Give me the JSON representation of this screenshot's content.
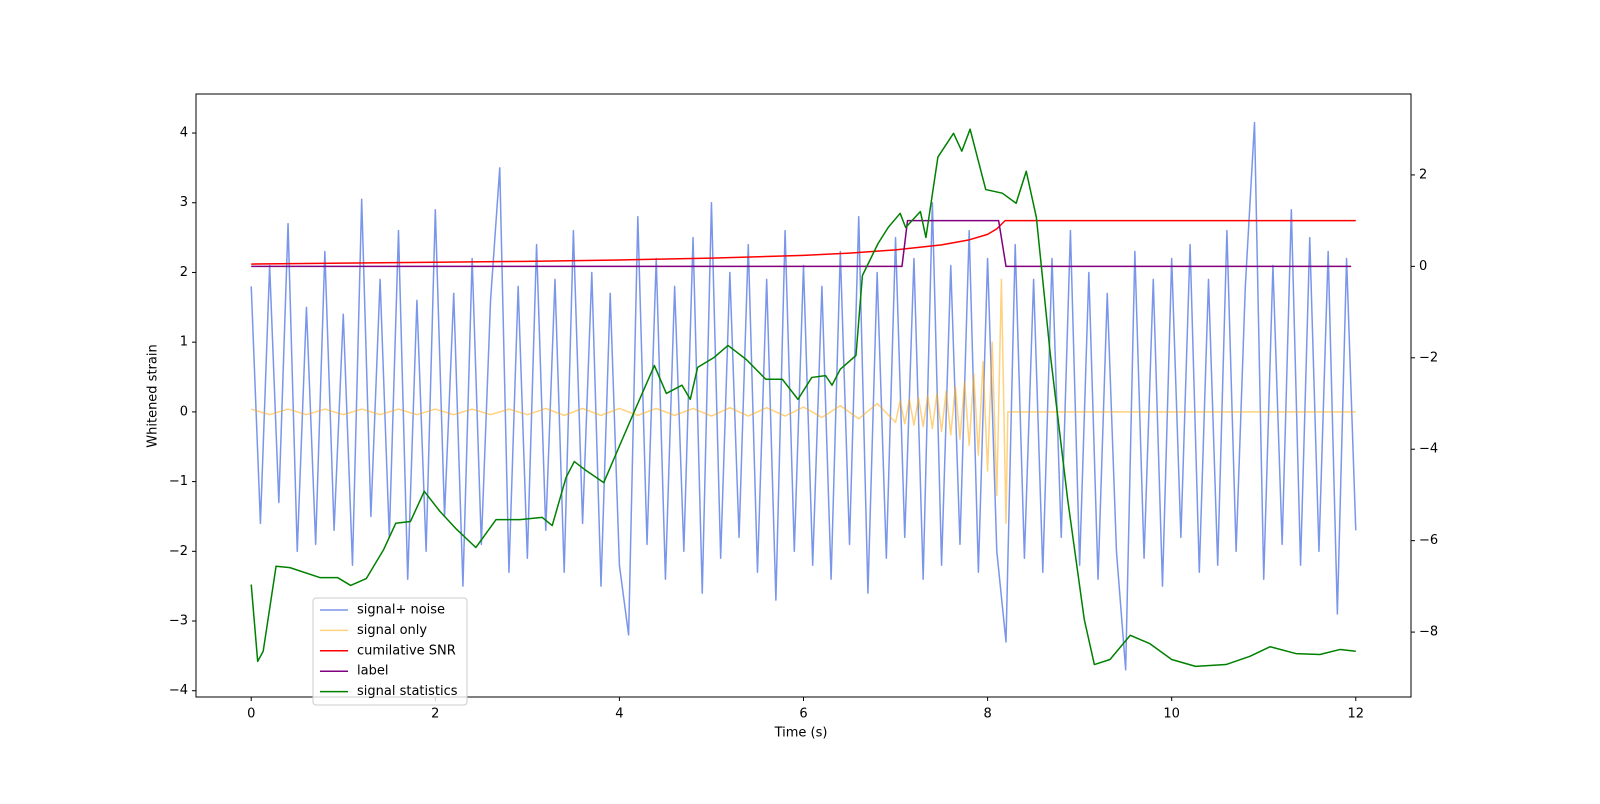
{
  "chart_data": {
    "type": "line",
    "xlabel": "Time (s)",
    "ylabel": "Whitened strain",
    "xlim": [
      -0.6,
      12.6
    ],
    "ylim": [
      -4.09,
      4.56
    ],
    "y2lim": [
      -9.42,
      3.77
    ],
    "xticks": [
      0,
      2,
      4,
      6,
      8,
      10,
      12
    ],
    "yticks": [
      {
        "value": -4,
        "label": "−4"
      },
      {
        "value": -3,
        "label": "−3"
      },
      {
        "value": -2,
        "label": "−2"
      },
      {
        "value": -1,
        "label": "−1"
      },
      0,
      1,
      2,
      3,
      4
    ],
    "y2ticks": [
      {
        "value": -8,
        "label": "−8"
      },
      {
        "value": -6,
        "label": "−6"
      },
      {
        "value": -4,
        "label": "−4"
      },
      {
        "value": -2,
        "label": "−2"
      },
      0,
      2
    ],
    "legend": "lower left",
    "grid": false,
    "series": [
      {
        "name": "signal+ noise",
        "color": "#4169e1",
        "opacity": 0.7,
        "x": [
          0,
          0.1,
          0.2,
          0.3,
          0.4,
          0.5,
          0.6,
          0.7,
          0.8,
          0.9,
          1,
          1.1,
          1.2,
          1.3,
          1.4,
          1.5,
          1.6,
          1.7,
          1.8,
          1.9,
          2,
          2.1,
          2.2,
          2.3,
          2.4,
          2.5,
          2.6,
          2.7,
          2.8,
          2.9,
          3,
          3.1,
          3.2,
          3.3,
          3.4,
          3.5,
          3.6,
          3.7,
          3.8,
          3.9,
          4,
          4.1,
          4.2,
          4.3,
          4.4,
          4.5,
          4.6,
          4.7,
          4.8,
          4.9,
          5,
          5.1,
          5.2,
          5.3,
          5.4,
          5.5,
          5.6,
          5.7,
          5.8,
          5.9,
          6,
          6.1,
          6.2,
          6.3,
          6.4,
          6.5,
          6.6,
          6.7,
          6.8,
          6.9,
          7,
          7.1,
          7.2,
          7.3,
          7.4,
          7.5,
          7.6,
          7.7,
          7.8,
          7.9,
          8,
          8.1,
          8.2,
          8.3,
          8.4,
          8.5,
          8.6,
          8.7,
          8.8,
          8.9,
          9,
          9.1,
          9.2,
          9.3,
          9.4,
          9.5,
          9.6,
          9.7,
          9.8,
          9.9,
          10,
          10.1,
          10.2,
          10.3,
          10.4,
          10.5,
          10.6,
          10.7,
          10.8,
          10.9,
          11,
          11.1,
          11.2,
          11.3,
          11.4,
          11.5,
          11.6,
          11.7,
          11.8,
          11.9,
          12
        ],
        "values": [
          1.8,
          -1.6,
          2.1,
          -1.3,
          2.7,
          -2.0,
          1.5,
          -1.9,
          2.3,
          -1.7,
          1.4,
          -2.2,
          3.05,
          -1.5,
          1.9,
          -1.8,
          2.6,
          -2.4,
          1.6,
          -2.0,
          2.9,
          -1.5,
          1.7,
          -2.5,
          2.2,
          -1.9,
          1.6,
          3.5,
          -2.3,
          1.8,
          -2.1,
          2.4,
          -1.7,
          1.9,
          -2.3,
          2.6,
          -1.6,
          2.0,
          -2.5,
          1.7,
          -2.2,
          -3.2,
          2.8,
          -1.9,
          2.2,
          -2.4,
          1.8,
          -2.0,
          2.5,
          -2.6,
          3.0,
          -2.1,
          2.0,
          -1.8,
          2.4,
          -2.3,
          1.9,
          -2.7,
          2.6,
          -2.0,
          2.1,
          -2.2,
          1.8,
          -2.4,
          2.3,
          -1.9,
          2.8,
          -2.6,
          2.0,
          -2.1,
          2.5,
          -1.8,
          2.2,
          -2.4,
          3.0,
          -2.2,
          2.1,
          -1.9,
          2.6,
          -2.3,
          2.2,
          -2.0,
          -3.3,
          2.4,
          -2.1,
          1.9,
          -2.3,
          2.2,
          -1.8,
          2.6,
          -2.2,
          2.0,
          -2.4,
          1.7,
          -2.0,
          -3.7,
          2.3,
          -2.1,
          1.9,
          -2.5,
          2.2,
          -1.8,
          2.4,
          -2.3,
          1.9,
          -2.2,
          2.6,
          -2.0,
          1.8,
          4.15,
          -2.4,
          2.1,
          -1.9,
          2.9,
          -2.2,
          2.5,
          -2.0,
          2.3,
          -2.9,
          2.2,
          -1.7
        ]
      },
      {
        "name": "signal only",
        "color": "#ffa500",
        "opacity": 0.5,
        "x": [
          0,
          0.2,
          0.4,
          0.6,
          0.8,
          1,
          1.2,
          1.4,
          1.6,
          1.8,
          2,
          2.2,
          2.4,
          2.6,
          2.8,
          3,
          3.2,
          3.4,
          3.6,
          3.8,
          4,
          4.2,
          4.4,
          4.6,
          4.8,
          5,
          5.2,
          5.4,
          5.6,
          5.8,
          6,
          6.2,
          6.4,
          6.6,
          6.8,
          7,
          7.05,
          7.1,
          7.15,
          7.2,
          7.25,
          7.3,
          7.35,
          7.4,
          7.45,
          7.5,
          7.55,
          7.6,
          7.65,
          7.7,
          7.75,
          7.8,
          7.85,
          7.9,
          7.95,
          8,
          8.05,
          8.1,
          8.15,
          8.2,
          8.22,
          12
        ],
        "values": [
          0.04,
          -0.04,
          0.04,
          -0.04,
          0.04,
          -0.04,
          0.04,
          -0.04,
          0.04,
          -0.04,
          0.04,
          -0.04,
          0.04,
          -0.04,
          0.04,
          -0.04,
          0.05,
          -0.05,
          0.05,
          -0.05,
          0.05,
          -0.05,
          0.05,
          -0.05,
          0.05,
          -0.06,
          0.06,
          -0.06,
          0.06,
          -0.06,
          0.07,
          -0.08,
          0.09,
          -0.1,
          0.12,
          -0.15,
          0.16,
          -0.17,
          0.18,
          -0.19,
          0.2,
          -0.21,
          0.23,
          -0.24,
          0.26,
          -0.28,
          0.3,
          -0.33,
          0.36,
          -0.39,
          0.43,
          -0.48,
          0.54,
          -0.62,
          0.72,
          -0.85,
          1.0,
          -1.2,
          1.9,
          -1.6,
          0,
          0
        ]
      },
      {
        "name": "cumilative SNR",
        "color": "#ff0000",
        "axis": "y2",
        "x": [
          0,
          1,
          2,
          3,
          4,
          5,
          6,
          6.5,
          7,
          7.5,
          7.8,
          8,
          8.1,
          8.19,
          12
        ],
        "values": [
          0.05,
          0.07,
          0.09,
          0.11,
          0.14,
          0.18,
          0.24,
          0.29,
          0.36,
          0.47,
          0.58,
          0.7,
          0.82,
          1.0,
          1.0
        ]
      },
      {
        "name": "label",
        "color": "#800080",
        "axis": "y2",
        "x": [
          0,
          7.07,
          7.13,
          8.12,
          8.2,
          11.95
        ],
        "values": [
          0,
          0,
          1,
          1,
          0,
          0
        ]
      },
      {
        "name": "signal statistics",
        "color": "#008000",
        "axis": "y2",
        "x": [
          0,
          0.07,
          0.13,
          0.27,
          0.42,
          0.75,
          0.94,
          1.08,
          1.25,
          1.44,
          1.57,
          1.73,
          1.88,
          2.05,
          2.23,
          2.44,
          2.66,
          2.92,
          3.16,
          3.27,
          3.42,
          3.51,
          3.62,
          3.83,
          4.03,
          4.18,
          4.38,
          4.51,
          4.68,
          4.77,
          4.85,
          5.03,
          5.18,
          5.38,
          5.59,
          5.77,
          5.94,
          6.09,
          6.24,
          6.31,
          6.4,
          6.57,
          6.64,
          6.81,
          6.92,
          7.05,
          7.11,
          7.27,
          7.33,
          7.46,
          7.63,
          7.72,
          7.81,
          7.98,
          8.16,
          8.31,
          8.42,
          8.53,
          8.68,
          8.87,
          9.05,
          9.16,
          9.33,
          9.55,
          9.76,
          10,
          10.26,
          10.59,
          10.85,
          11.07,
          11.35,
          11.61,
          11.83,
          12
        ],
        "values": [
          -6.96,
          -8.64,
          -8.42,
          -6.56,
          -6.59,
          -6.81,
          -6.81,
          -6.98,
          -6.83,
          -6.19,
          -5.62,
          -5.58,
          -4.92,
          -5.36,
          -5.75,
          -6.15,
          -5.54,
          -5.54,
          -5.49,
          -5.67,
          -4.62,
          -4.27,
          -4.44,
          -4.73,
          -3.79,
          -3.09,
          -2.17,
          -2.78,
          -2.6,
          -2.91,
          -2.21,
          -1.99,
          -1.73,
          -2.04,
          -2.47,
          -2.47,
          -2.91,
          -2.43,
          -2.39,
          -2.6,
          -2.25,
          -1.95,
          -0.2,
          0.5,
          0.85,
          1.16,
          0.85,
          1.2,
          0.63,
          2.39,
          2.91,
          2.52,
          3.0,
          1.68,
          1.6,
          1.38,
          2.08,
          1.07,
          -1.9,
          -5.1,
          -7.72,
          -8.71,
          -8.6,
          -8.07,
          -8.25,
          -8.6,
          -8.75,
          -8.71,
          -8.53,
          -8.32,
          -8.47,
          -8.49,
          -8.38,
          -8.42
        ]
      }
    ]
  }
}
